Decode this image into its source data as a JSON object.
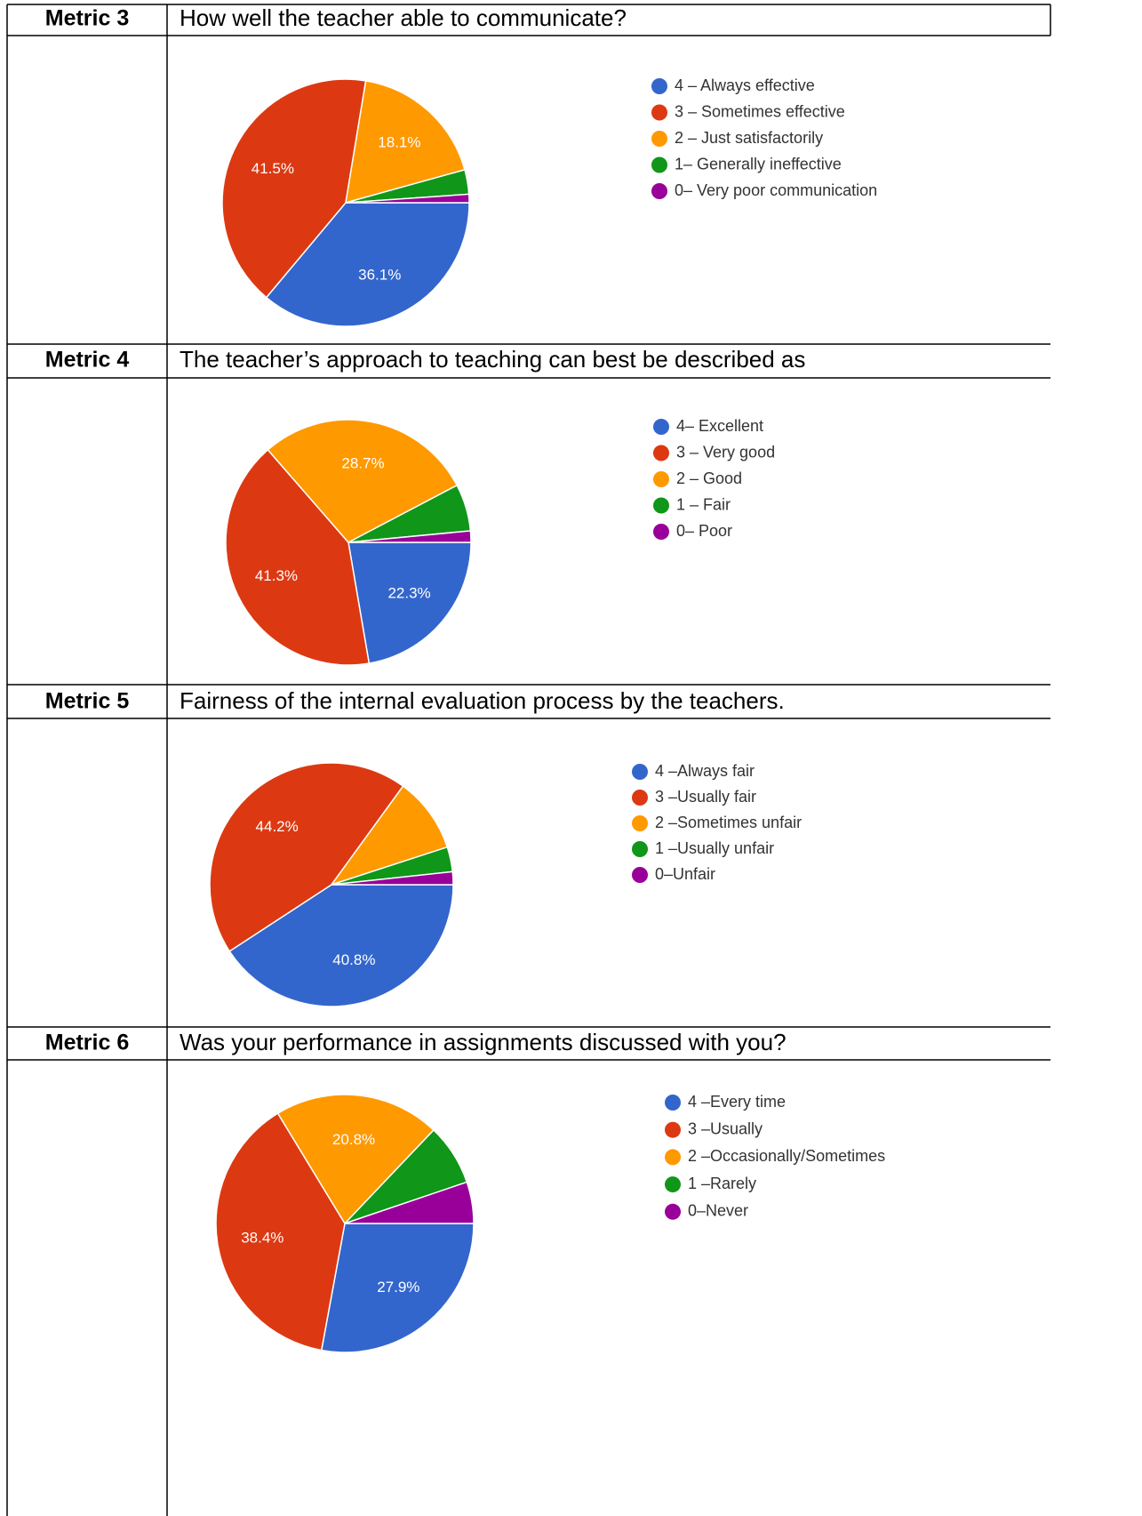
{
  "rows": [
    {
      "metric": "Metric 3",
      "question": "How well the teacher able to communicate?",
      "chart": {
        "type": "pie",
        "categories": [
          "4 – Always effective",
          "3 – Sometimes effective",
          "2 – Just satisfactorily",
          "1– Generally ineffective",
          "0– Very poor communication"
        ],
        "values": [
          36.1,
          41.5,
          18.1,
          3.2,
          1.1
        ],
        "value_labels": [
          "36.1%",
          "41.5%",
          "18.1%",
          null,
          null
        ],
        "colors": [
          "#3366cc",
          "#dc3912",
          "#ff9900",
          "#109618",
          "#990099"
        ]
      }
    },
    {
      "metric": "Metric 4",
      "question": "The teacher’s approach to teaching can best be described as",
      "chart": {
        "type": "pie",
        "categories": [
          "4– Excellent",
          "3 – Very good",
          "2 – Good",
          "1 – Fair",
          "0– Poor"
        ],
        "values": [
          22.3,
          41.3,
          28.7,
          6.2,
          1.5
        ],
        "value_labels": [
          "22.3%",
          "41.3%",
          "28.7%",
          null,
          null
        ],
        "colors": [
          "#3366cc",
          "#dc3912",
          "#ff9900",
          "#109618",
          "#990099"
        ]
      }
    },
    {
      "metric": "Metric 5",
      "question": "Fairness of the internal evaluation process by the teachers.",
      "chart": {
        "type": "pie",
        "categories": [
          "4 –Always fair",
          "3 –Usually fair",
          "2 –Sometimes unfair",
          "1 –Usually unfair",
          "0–Unfair"
        ],
        "values": [
          40.8,
          44.2,
          10,
          3.3,
          1.7
        ],
        "value_labels": [
          "40.8%",
          "44.2%",
          null,
          null,
          null
        ],
        "colors": [
          "#3366cc",
          "#dc3912",
          "#ff9900",
          "#109618",
          "#990099"
        ]
      }
    },
    {
      "metric": "Metric 6",
      "question": "Was your performance in assignments discussed with you?",
      "chart": {
        "type": "pie",
        "categories": [
          "4 –Every time",
          "3 –Usually",
          "2 –Occasionally/Sometimes",
          "1 –Rarely",
          "0–Never"
        ],
        "values": [
          27.9,
          38.4,
          20.8,
          7.7,
          5.2
        ],
        "value_labels": [
          "27.9%",
          "38.4%",
          "20.8%",
          null,
          null
        ],
        "colors": [
          "#3366cc",
          "#dc3912",
          "#ff9900",
          "#109618",
          "#990099"
        ]
      }
    }
  ]
}
